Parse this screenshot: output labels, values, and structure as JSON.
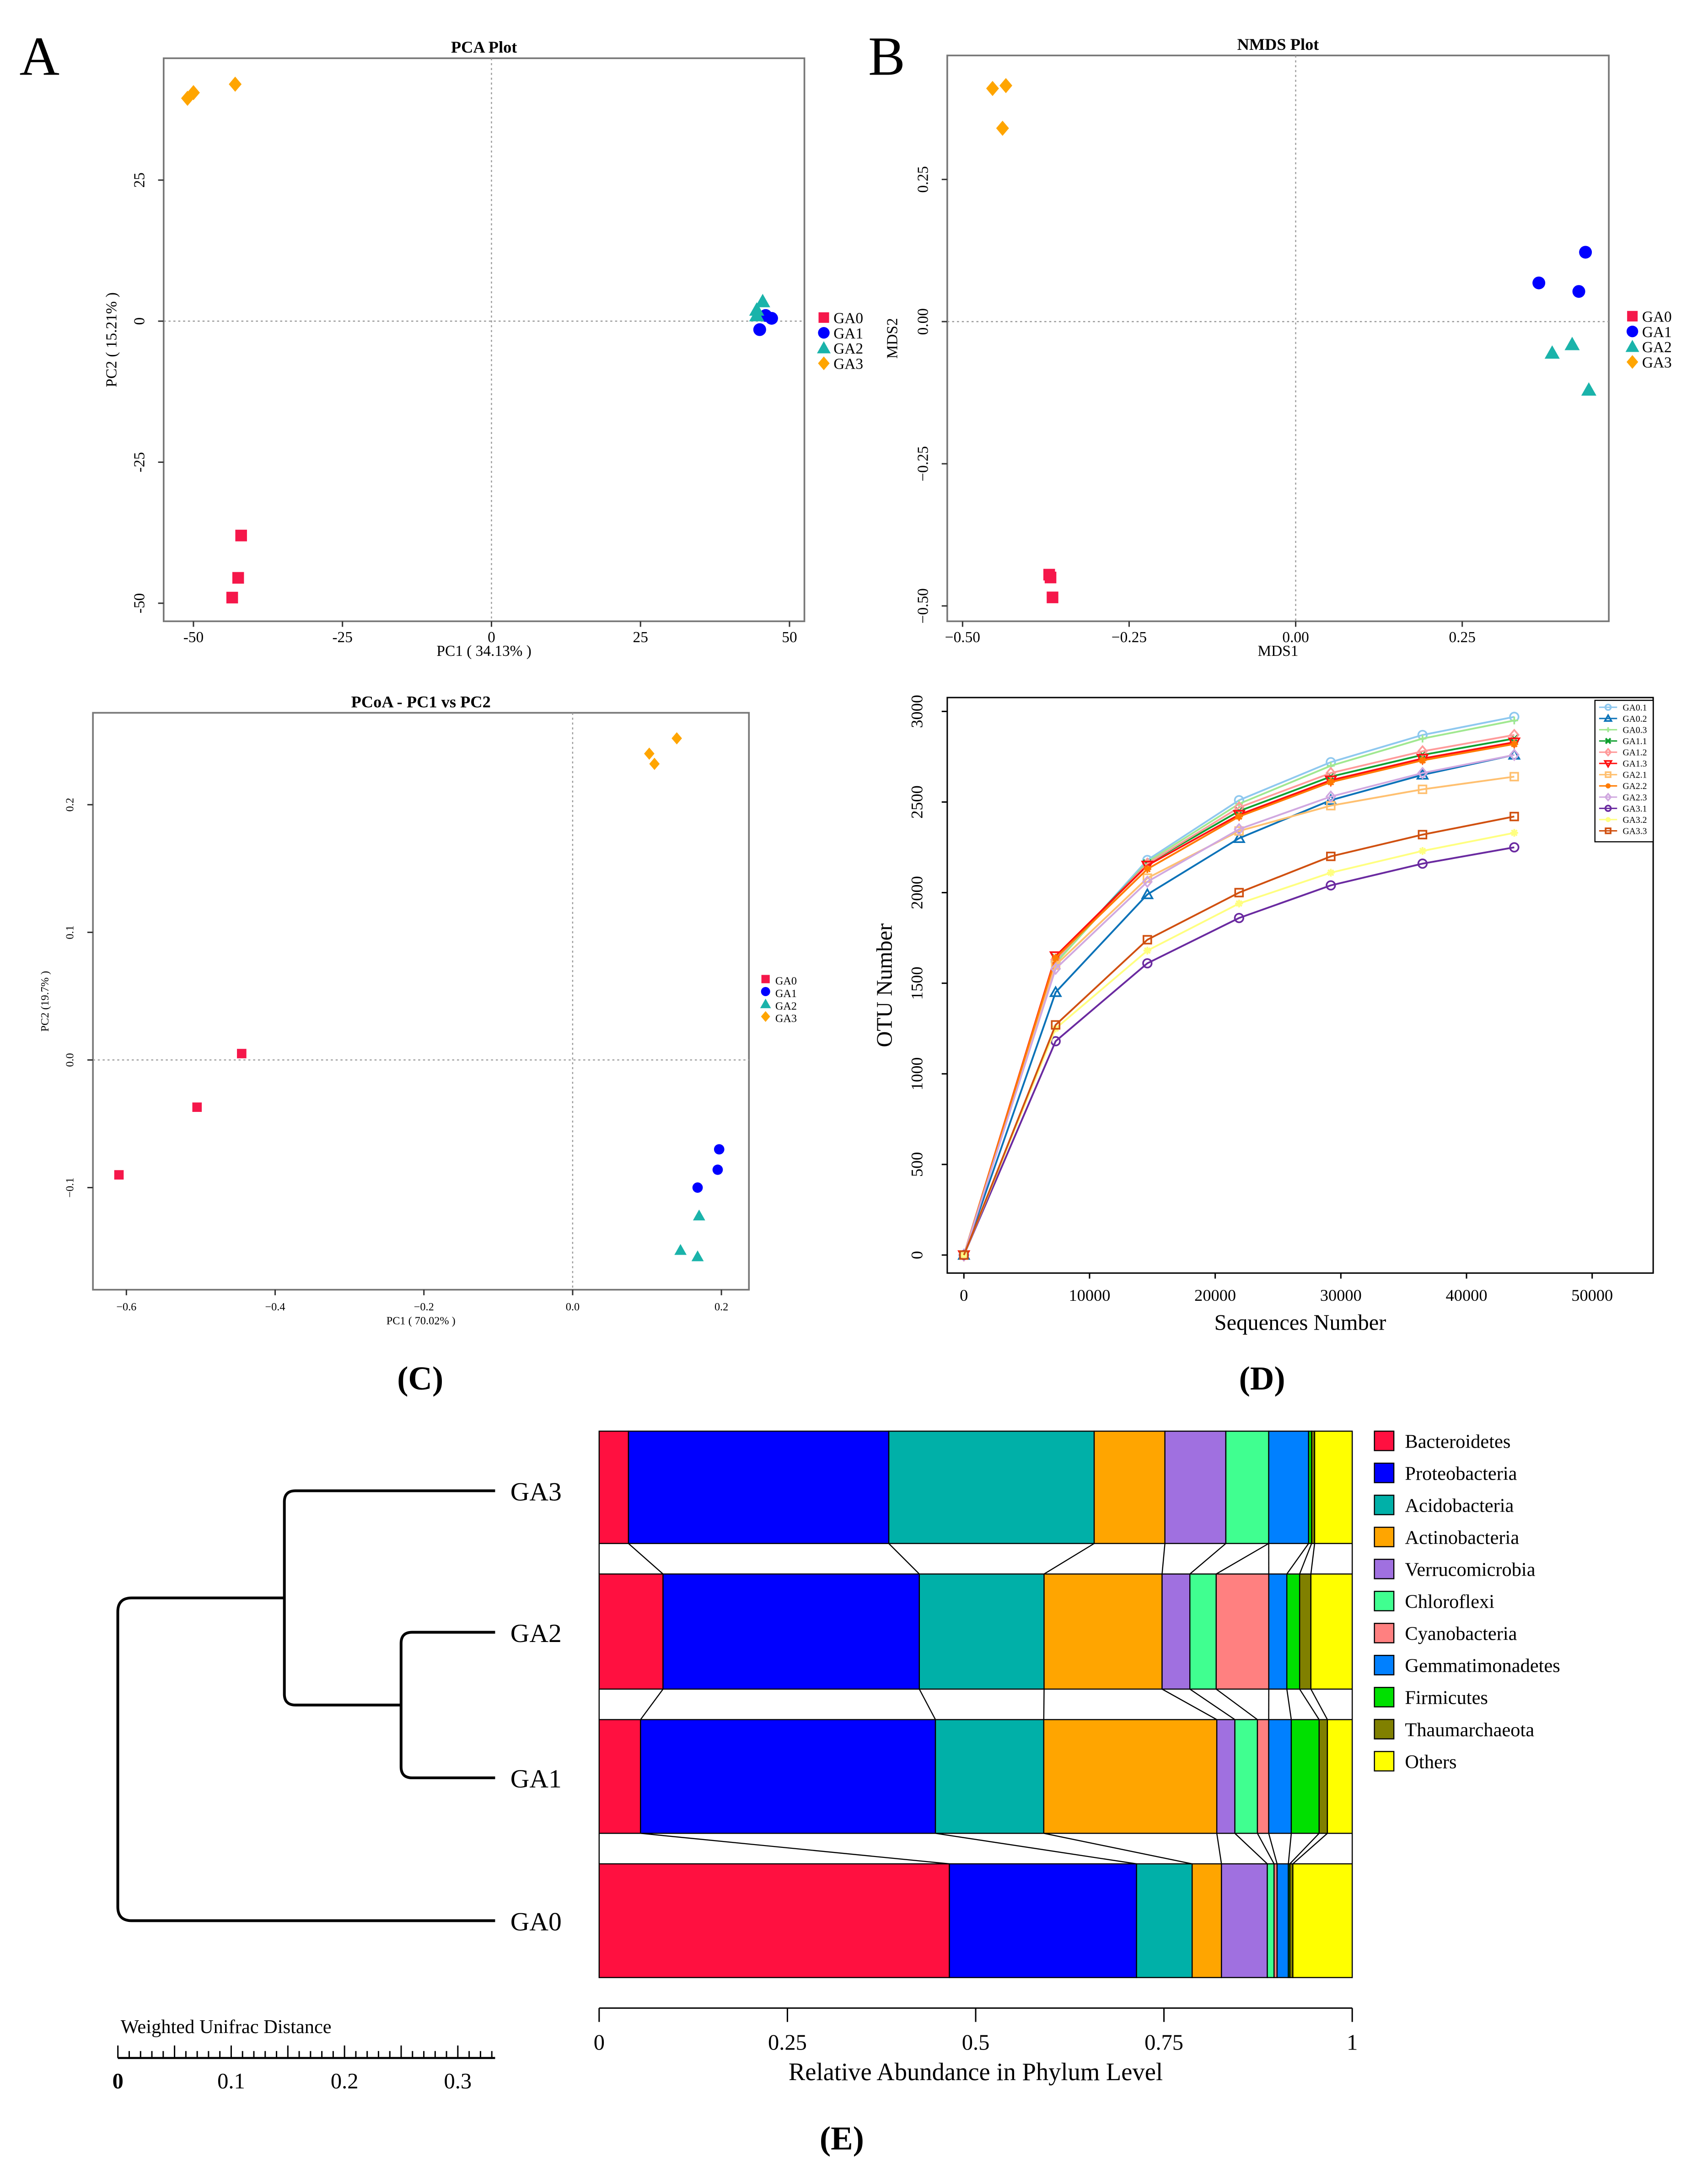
{
  "panels": {
    "A": "A",
    "B": "B",
    "C": "(C)",
    "D": "(D)",
    "E": "(E)"
  },
  "groups": [
    {
      "name": "GA0",
      "color": "#f5174a",
      "shape": "square"
    },
    {
      "name": "GA1",
      "color": "#0000ff",
      "shape": "circle"
    },
    {
      "name": "GA2",
      "color": "#1ab3aa",
      "shape": "triangle"
    },
    {
      "name": "GA3",
      "color": "#ffa500",
      "shape": "diamond"
    }
  ],
  "chart_data": [
    {
      "id": "pca",
      "type": "scatter",
      "title": "PCA Plot",
      "xlabel": "PC1 ( 34.13% )",
      "ylabel": "PC2 ( 15.21% )",
      "xlim": [
        -55,
        52.5
      ],
      "ylim": [
        -53.2,
        46.6
      ],
      "xticks": [
        {
          "v": -50,
          "label": "-50"
        },
        {
          "v": -25,
          "label": "-25"
        },
        {
          "v": 0,
          "label": "0"
        },
        {
          "v": 25,
          "label": "25"
        },
        {
          "v": 50,
          "label": "50"
        }
      ],
      "yticks": [
        {
          "v": -50,
          "label": "-50"
        },
        {
          "v": -25,
          "label": "-25"
        },
        {
          "v": 0,
          "label": "0"
        },
        {
          "v": 25,
          "label": "25"
        }
      ],
      "points": {
        "GA0": [
          [
            -42,
            -38
          ],
          [
            -42.5,
            -45.5
          ],
          [
            -43.5,
            -49
          ]
        ],
        "GA1": [
          [
            46,
            1
          ],
          [
            47,
            0.5
          ],
          [
            45,
            -1.5
          ]
        ],
        "GA2": [
          [
            44.5,
            2
          ],
          [
            45.5,
            3.5
          ],
          [
            44.5,
            1
          ]
        ],
        "GA3": [
          [
            -51,
            39.5
          ],
          [
            -50,
            40.5
          ],
          [
            -43,
            42
          ]
        ]
      },
      "legend": "right"
    },
    {
      "id": "nmds",
      "type": "scatter",
      "title": "NMDS Plot",
      "xlabel": "MDS1",
      "ylabel": "MDS2",
      "xlim": [
        -0.523,
        0.47
      ],
      "ylim": [
        -0.527,
        0.468
      ],
      "xticks": [
        {
          "v": -0.5,
          "label": "−0.50"
        },
        {
          "v": -0.25,
          "label": "−0.25"
        },
        {
          "v": 0,
          "label": "0.00"
        },
        {
          "v": 0.25,
          "label": "0.25"
        }
      ],
      "yticks": [
        {
          "v": -0.5,
          "label": "−0.50"
        },
        {
          "v": -0.25,
          "label": "−0.25"
        },
        {
          "v": 0,
          "label": "0.00"
        },
        {
          "v": 0.25,
          "label": "0.25"
        }
      ],
      "points": {
        "GA0": [
          [
            -0.37,
            -0.445
          ],
          [
            -0.368,
            -0.45
          ],
          [
            -0.365,
            -0.485
          ]
        ],
        "GA1": [
          [
            0.365,
            0.068
          ],
          [
            0.425,
            0.053
          ],
          [
            0.435,
            0.122
          ]
        ],
        "GA2": [
          [
            0.385,
            -0.055
          ],
          [
            0.415,
            -0.04
          ],
          [
            0.44,
            -0.12
          ]
        ],
        "GA3": [
          [
            -0.455,
            0.41
          ],
          [
            -0.435,
            0.415
          ],
          [
            -0.44,
            0.34
          ]
        ]
      },
      "legend": "right"
    },
    {
      "id": "pcoa",
      "type": "scatter",
      "title": "PCoA - PC1 vs PC2",
      "xlabel": "PC1 ( 70.02% )",
      "ylabel": "PC2 (19.7% )",
      "xlim": [
        -0.645,
        0.237
      ],
      "ylim": [
        -0.18,
        0.272
      ],
      "xticks": [
        {
          "v": -0.6,
          "label": "−0.6"
        },
        {
          "v": -0.4,
          "label": "−0.4"
        },
        {
          "v": -0.2,
          "label": "−0.2"
        },
        {
          "v": 0,
          "label": "0.0"
        },
        {
          "v": 0.2,
          "label": "0.2"
        }
      ],
      "yticks": [
        {
          "v": -0.1,
          "label": "−0.1"
        },
        {
          "v": 0,
          "label": "0.0"
        },
        {
          "v": 0.1,
          "label": "0.1"
        },
        {
          "v": 0.2,
          "label": "0.2"
        }
      ],
      "points": {
        "GA0": [
          [
            -0.61,
            -0.09
          ],
          [
            -0.505,
            -0.037
          ],
          [
            -0.445,
            0.005
          ]
        ],
        "GA1": [
          [
            0.168,
            -0.1
          ],
          [
            0.195,
            -0.086
          ],
          [
            0.197,
            -0.07
          ]
        ],
        "GA2": [
          [
            0.145,
            -0.149
          ],
          [
            0.17,
            -0.122
          ],
          [
            0.168,
            -0.154
          ]
        ],
        "GA3": [
          [
            0.103,
            0.24
          ],
          [
            0.11,
            0.232
          ],
          [
            0.14,
            0.252
          ]
        ]
      },
      "legend": "right"
    },
    {
      "id": "rarefaction",
      "type": "line",
      "xlabel": "Sequences Number",
      "ylabel": "OTU Number",
      "xlim": [
        -1300,
        55000
      ],
      "ylim": [
        -100,
        3050
      ],
      "xticks": [
        0,
        10000,
        20000,
        30000,
        40000,
        50000
      ],
      "yticks": [
        0,
        500,
        1000,
        1500,
        2000,
        2500,
        3000
      ],
      "x": [
        0,
        7300,
        14600,
        21900,
        29200,
        36500,
        43800
      ],
      "series": [
        {
          "name": "GA0.1",
          "color": "#8ec8ef",
          "marker": "circle",
          "values": [
            0,
            1620,
            2180,
            2510,
            2720,
            2870,
            2970
          ]
        },
        {
          "name": "GA0.2",
          "color": "#0a72b8",
          "marker": "triangle",
          "values": [
            0,
            1450,
            1990,
            2300,
            2510,
            2650,
            2760
          ]
        },
        {
          "name": "GA0.3",
          "color": "#a0e890",
          "marker": "plus",
          "values": [
            0,
            1610,
            2170,
            2490,
            2700,
            2850,
            2950
          ]
        },
        {
          "name": "GA1.1",
          "color": "#10a030",
          "marker": "x",
          "values": [
            0,
            1640,
            2160,
            2450,
            2640,
            2760,
            2850
          ]
        },
        {
          "name": "GA1.2",
          "color": "#ff9a9a",
          "marker": "diamond",
          "values": [
            0,
            1630,
            2160,
            2470,
            2660,
            2780,
            2870
          ]
        },
        {
          "name": "GA1.3",
          "color": "#ff1010",
          "marker": "triangle-down",
          "values": [
            0,
            1650,
            2150,
            2430,
            2620,
            2740,
            2830
          ]
        },
        {
          "name": "GA2.1",
          "color": "#ffc070",
          "marker": "square",
          "values": [
            0,
            1600,
            2080,
            2340,
            2480,
            2570,
            2640
          ]
        },
        {
          "name": "GA2.2",
          "color": "#ff7a00",
          "marker": "star",
          "values": [
            0,
            1640,
            2130,
            2420,
            2610,
            2730,
            2820
          ]
        },
        {
          "name": "GA2.3",
          "color": "#d0a8e0",
          "marker": "diamond",
          "values": [
            0,
            1580,
            2060,
            2350,
            2530,
            2660,
            2760
          ]
        },
        {
          "name": "GA3.1",
          "color": "#6a2aa0",
          "marker": "circle",
          "values": [
            0,
            1180,
            1610,
            1860,
            2040,
            2160,
            2250
          ]
        },
        {
          "name": "GA3.2",
          "color": "#ffff80",
          "marker": "star",
          "values": [
            0,
            1250,
            1680,
            1940,
            2110,
            2230,
            2330
          ]
        },
        {
          "name": "GA3.3",
          "color": "#d05010",
          "marker": "square",
          "values": [
            0,
            1270,
            1740,
            2000,
            2200,
            2320,
            2420
          ]
        }
      ],
      "legend": "top-right"
    },
    {
      "id": "phylum",
      "type": "bar",
      "orientation": "horizontal-stacked",
      "xlabel": "Relative Abundance in Phylum Level",
      "xticks": [
        {
          "v": 0,
          "label": "0"
        },
        {
          "v": 0.25,
          "label": "0.25"
        },
        {
          "v": 0.5,
          "label": "0.5"
        },
        {
          "v": 0.75,
          "label": "0.75"
        },
        {
          "v": 1,
          "label": "1"
        }
      ],
      "categories": [
        "GA3",
        "GA2",
        "GA1",
        "GA0"
      ],
      "series": [
        {
          "name": "Bacteroidetes",
          "color": "#ff1040",
          "values": [
            0.039,
            0.085,
            0.055,
            0.466
          ]
        },
        {
          "name": "Proteobacteria",
          "color": "#0000ff",
          "values": [
            0.346,
            0.341,
            0.392,
            0.249
          ]
        },
        {
          "name": "Acidobacteria",
          "color": "#00b0a8",
          "values": [
            0.273,
            0.166,
            0.144,
            0.074
          ]
        },
        {
          "name": "Actinobacteria",
          "color": "#ffa500",
          "values": [
            0.094,
            0.157,
            0.23,
            0.039
          ]
        },
        {
          "name": "Verrucomicrobia",
          "color": "#a070e0",
          "values": [
            0.081,
            0.037,
            0.024,
            0.061
          ]
        },
        {
          "name": "Chloroflexi",
          "color": "#40ff90",
          "values": [
            0.057,
            0.035,
            0.03,
            0.009
          ]
        },
        {
          "name": "Cyanobacteria",
          "color": "#ff8080",
          "values": [
            0.0,
            0.07,
            0.015,
            0.004
          ]
        },
        {
          "name": "Gemmatimonadetes",
          "color": "#0080ff",
          "values": [
            0.053,
            0.024,
            0.03,
            0.015
          ]
        },
        {
          "name": "Firmicutes",
          "color": "#00e000",
          "values": [
            0.004,
            0.017,
            0.037,
            0.002
          ]
        },
        {
          "name": "Thaumarchaeota",
          "color": "#808000",
          "values": [
            0.004,
            0.015,
            0.011,
            0.004
          ]
        },
        {
          "name": "Others",
          "color": "#ffff00",
          "values": [
            0.05,
            0.055,
            0.033,
            0.079
          ]
        }
      ],
      "legend_labels": [
        "Bacteroidetes",
        "Proteobacteria",
        "Acidobacteria",
        "Actinobacteria",
        "Verrucomicrobia",
        "Chloroflexi",
        "Cyanobacteria",
        "Gemmatimonadetes",
        "Firmicutes",
        "Thaumarchaeota",
        "Others"
      ],
      "legend": "right"
    },
    {
      "id": "dendrogram",
      "type": "dendrogram",
      "scale_label": "Weighted Unifrac Distance",
      "scale_ticks": [
        {
          "v": 0,
          "label": "0"
        },
        {
          "v": 0.1,
          "label": "0.1"
        },
        {
          "v": 0.2,
          "label": "0.2"
        },
        {
          "v": 0.3,
          "label": "0.3"
        }
      ],
      "leaves": [
        "GA3",
        "GA2",
        "GA1",
        "GA0"
      ],
      "merges": [
        {
          "a": "GA2",
          "b": "GA1",
          "height": 0.083
        },
        {
          "a": "GA3",
          "b": "GA2+GA1",
          "height": 0.186
        },
        {
          "a": "GA0",
          "b": "rest",
          "height": 0.333
        }
      ]
    }
  ]
}
